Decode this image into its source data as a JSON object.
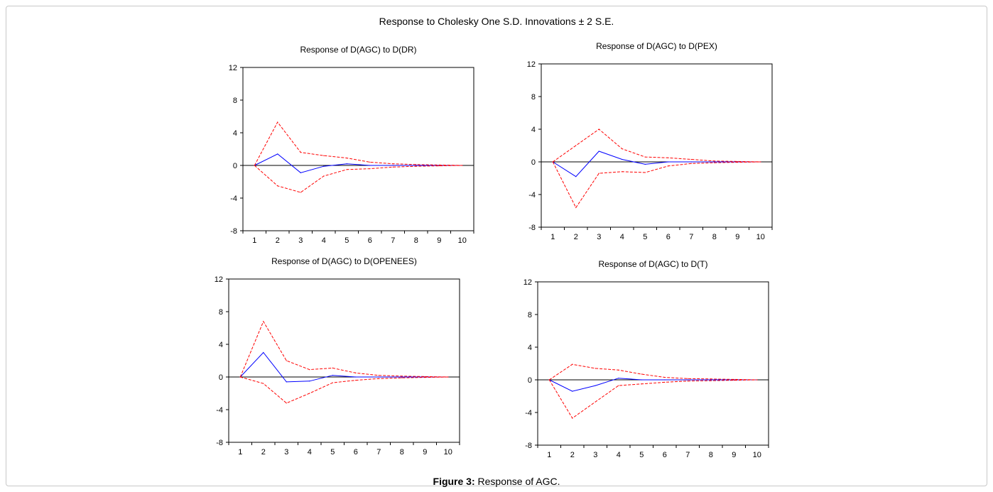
{
  "figure": {
    "title": "Response to Cholesky One S.D. Innovations ± 2 S.E.",
    "caption_label": "Figure 3:",
    "caption_text": "Response of AGC."
  },
  "chart_data": [
    {
      "type": "line",
      "title": "Response of D(AGC) to D(DR)",
      "x": [
        1,
        2,
        3,
        4,
        5,
        6,
        7,
        8,
        9,
        10
      ],
      "ylim": [
        -8,
        12
      ],
      "yticks": [
        -8,
        -4,
        0,
        4,
        8,
        12
      ],
      "grid": false,
      "zero_line": true,
      "series": [
        {
          "color": "#0000ff",
          "dash": false,
          "values": [
            0,
            1.4,
            -0.9,
            -0.1,
            0.2,
            0.0,
            0.0,
            0.0,
            0.0,
            0.0
          ]
        },
        {
          "color": "#ff0000",
          "dash": true,
          "values": [
            0,
            5.3,
            1.6,
            1.2,
            0.9,
            0.4,
            0.2,
            0.1,
            0.05,
            0.0
          ]
        },
        {
          "color": "#ff0000",
          "dash": true,
          "values": [
            0,
            -2.5,
            -3.3,
            -1.3,
            -0.5,
            -0.4,
            -0.2,
            -0.1,
            -0.05,
            0.0
          ]
        }
      ]
    },
    {
      "type": "line",
      "title": "Response of D(AGC) to D(PEX)",
      "x": [
        1,
        2,
        3,
        4,
        5,
        6,
        7,
        8,
        9,
        10
      ],
      "ylim": [
        -8,
        12
      ],
      "yticks": [
        -8,
        -4,
        0,
        4,
        8,
        12
      ],
      "grid": false,
      "zero_line": true,
      "series": [
        {
          "color": "#0000ff",
          "dash": false,
          "values": [
            0,
            -1.8,
            1.3,
            0.3,
            -0.3,
            0.0,
            0.0,
            0.0,
            0.0,
            0.0
          ]
        },
        {
          "color": "#ff0000",
          "dash": true,
          "values": [
            0,
            2.0,
            4.0,
            1.6,
            0.6,
            0.5,
            0.3,
            0.1,
            0.05,
            0.0
          ]
        },
        {
          "color": "#ff0000",
          "dash": true,
          "values": [
            0,
            -5.6,
            -1.4,
            -1.2,
            -1.3,
            -0.5,
            -0.2,
            -0.1,
            -0.05,
            0.0
          ]
        }
      ]
    },
    {
      "type": "line",
      "title": "Response of D(AGC) to D(OPENEES)",
      "x": [
        1,
        2,
        3,
        4,
        5,
        6,
        7,
        8,
        9,
        10
      ],
      "ylim": [
        -8,
        12
      ],
      "yticks": [
        -8,
        -4,
        0,
        4,
        8,
        12
      ],
      "grid": false,
      "zero_line": true,
      "series": [
        {
          "color": "#0000ff",
          "dash": false,
          "values": [
            0,
            3.0,
            -0.6,
            -0.5,
            0.2,
            0.0,
            0.0,
            0.0,
            0.0,
            0.0
          ]
        },
        {
          "color": "#ff0000",
          "dash": true,
          "values": [
            0,
            6.8,
            2.0,
            0.9,
            1.1,
            0.5,
            0.2,
            0.1,
            0.05,
            0.0
          ]
        },
        {
          "color": "#ff0000",
          "dash": true,
          "values": [
            0,
            -0.8,
            -3.2,
            -2.0,
            -0.7,
            -0.4,
            -0.2,
            -0.1,
            -0.05,
            0.0
          ]
        }
      ]
    },
    {
      "type": "line",
      "title": "Response of D(AGC) to D(T)",
      "x": [
        1,
        2,
        3,
        4,
        5,
        6,
        7,
        8,
        9,
        10
      ],
      "ylim": [
        -8,
        12
      ],
      "yticks": [
        -8,
        -4,
        0,
        4,
        8,
        12
      ],
      "grid": false,
      "zero_line": true,
      "series": [
        {
          "color": "#0000ff",
          "dash": false,
          "values": [
            0,
            -1.4,
            -0.7,
            0.2,
            0.0,
            0.0,
            0.0,
            0.0,
            0.0,
            0.0
          ]
        },
        {
          "color": "#ff0000",
          "dash": true,
          "values": [
            0,
            1.9,
            1.4,
            1.2,
            0.7,
            0.3,
            0.15,
            0.1,
            0.05,
            0.0
          ]
        },
        {
          "color": "#ff0000",
          "dash": true,
          "values": [
            0,
            -4.7,
            -2.7,
            -0.7,
            -0.5,
            -0.3,
            -0.15,
            -0.1,
            -0.05,
            0.0
          ]
        }
      ]
    }
  ]
}
